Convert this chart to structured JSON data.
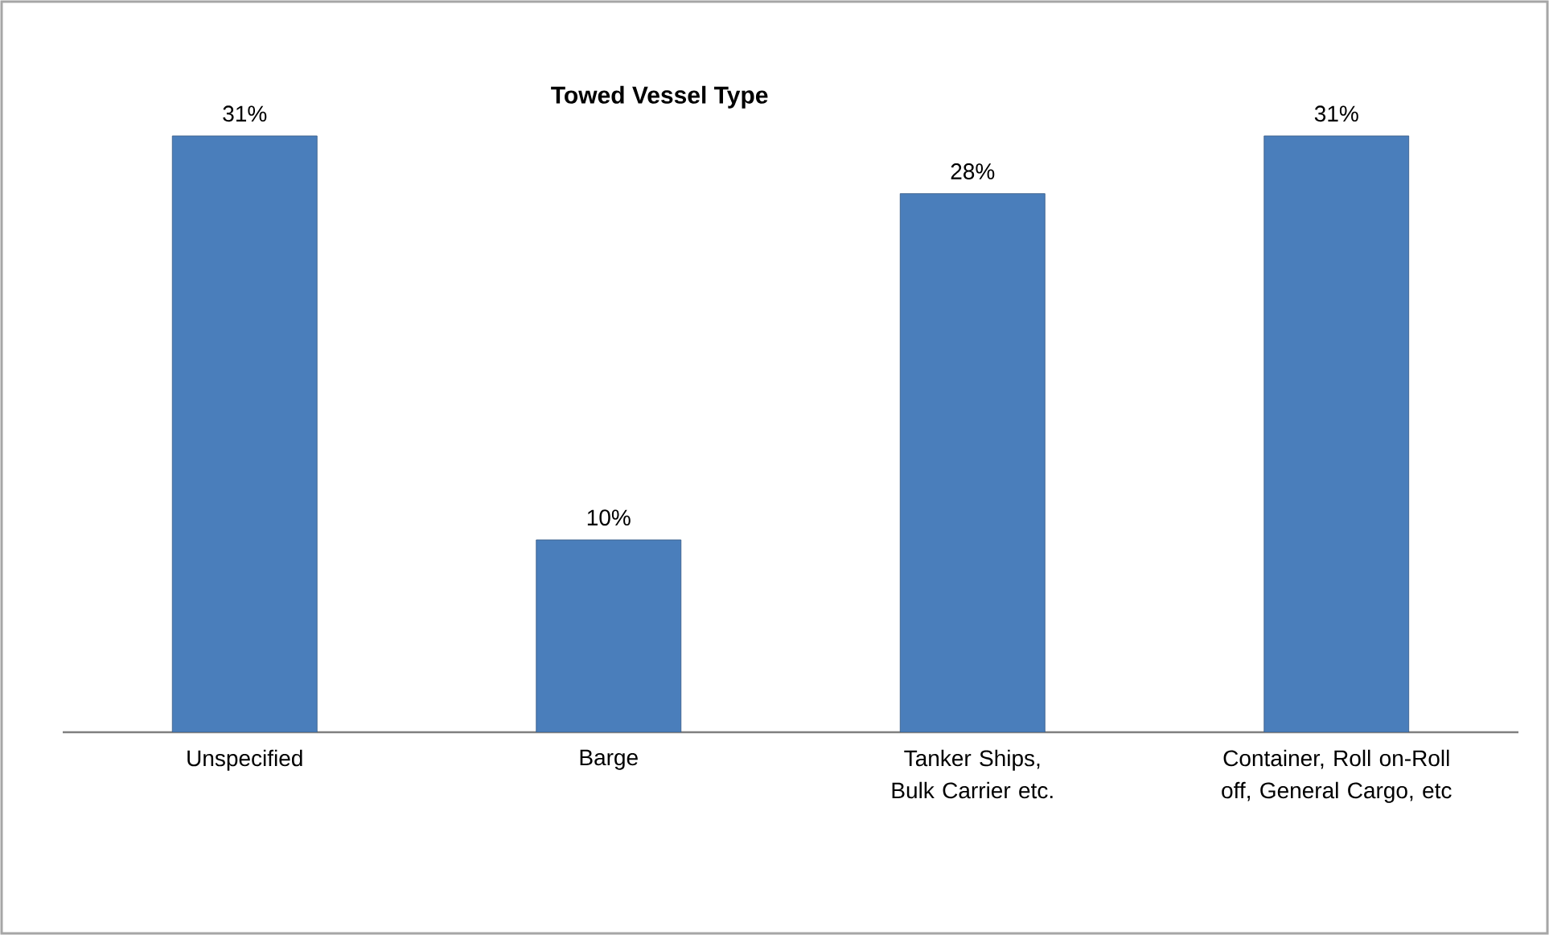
{
  "chart_data": {
    "type": "bar",
    "title": "Towed Vessel Type",
    "categories": [
      "Unspecified",
      "Barge",
      "Tanker Ships, Bulk Carrier etc.",
      "Container, Roll on-Roll off, General Cargo, etc"
    ],
    "values": [
      31,
      10,
      28,
      31
    ],
    "value_labels": [
      "31%",
      "10%",
      "28%",
      "31%"
    ],
    "color": "#4a7ebb"
  }
}
